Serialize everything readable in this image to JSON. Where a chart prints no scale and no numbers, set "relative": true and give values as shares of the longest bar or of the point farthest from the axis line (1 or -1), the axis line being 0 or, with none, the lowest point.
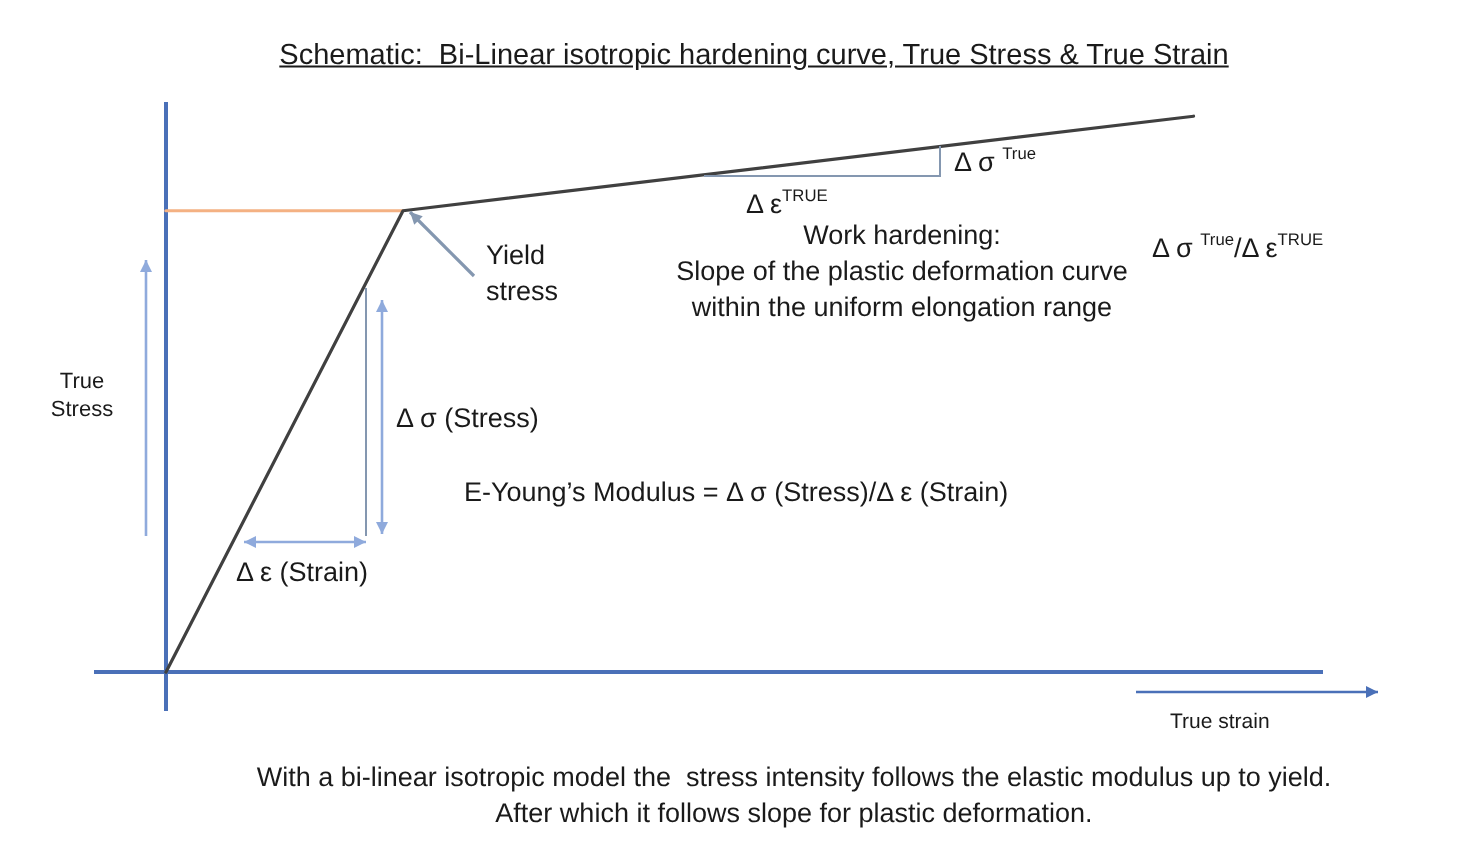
{
  "chart_data": {
    "type": "line",
    "title": "Schematic:  Bi-Linear isotropic hardening curve, True Stress & True Strain",
    "xlabel": "True strain",
    "ylabel": "True Stress",
    "relative": true,
    "categories": [
      null,
      null,
      null,
      null,
      null,
      null,
      null,
      null,
      null,
      null,
      null,
      null,
      null,
      null
    ],
    "series": [
      {
        "color": "#404040",
        "values": [
          0,
          null,
          null,
          0.83,
          null,
          null,
          null,
          null,
          null,
          null,
          null,
          null,
          null,
          1
        ]
      },
      {
        "color": "#f4b183",
        "values": [
          0.83,
          null,
          null,
          0.83,
          null,
          null,
          null,
          null,
          null,
          null,
          null,
          null,
          null,
          null
        ]
      }
    ],
    "annotations": [
      "Yield stress",
      "Δ σ (Stress)",
      "Δ ε (Strain)",
      "E-Young’s Modulus = Δ σ (Stress)/Δ ε (Strain)",
      "Δ σ $^{True}$",
      "Δ ε$^{TRUE}$",
      "Work hardening:\nSlope of the plastic deformation curve\nwithin the uniform elongation range",
      "Δ σ $^{True}$/Δ ε$^{TRUE}$",
      "With a bi-linear isotropic model the  stress intensity follows the elastic modulus up to yield.\nAfter which it follows slope for plastic deformation."
    ]
  }
}
